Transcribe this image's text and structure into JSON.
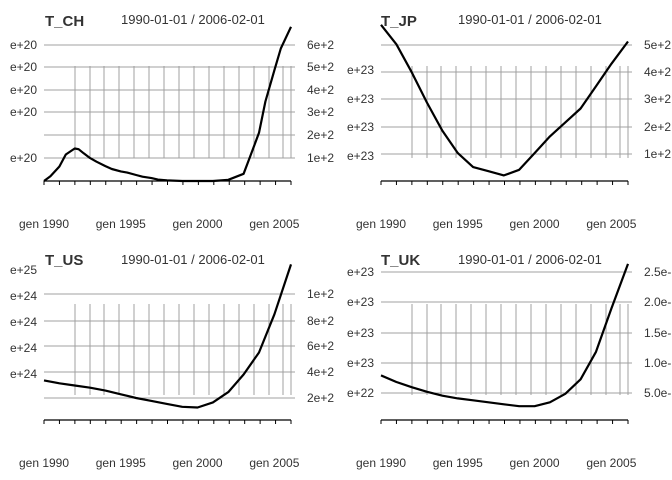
{
  "chart_data": [
    {
      "type": "line",
      "title": "T_CH",
      "date_range": "1990-01-01 / 2006-02-01",
      "x_tick_labels": [
        "gen 1990",
        "gen 1995",
        "gen 2000",
        "gen 2005"
      ],
      "y_tick_labels_left": [
        "e+20",
        "e+20",
        "e+20",
        "e+20",
        "e+20"
      ],
      "y_tick_labels_right": [
        "6e+2",
        "5e+2",
        "4e+2",
        "3e+2",
        "2e+2",
        "1e+2"
      ],
      "grid": true,
      "series": [
        {
          "x": [
            "1990-01",
            "1990-06",
            "1991-01",
            "1991-06",
            "1992-01",
            "1992-04",
            "1992-08",
            "1993-01",
            "1993-06",
            "1994-01",
            "1994-06",
            "1995-01",
            "1995-06",
            "1996-01",
            "1996-06",
            "1997-01",
            "1997-06",
            "1998-01",
            "1999-01",
            "2000-01",
            "2001-01",
            "2002-01",
            "2003-01",
            "2003-06",
            "2004-01",
            "2004-06",
            "2005-01",
            "2005-06",
            "2006-02"
          ],
          "y": [
            0.0,
            0.2,
            0.6,
            1.1,
            1.35,
            1.32,
            1.15,
            0.95,
            0.8,
            0.62,
            0.5,
            0.4,
            0.35,
            0.25,
            0.18,
            0.12,
            0.06,
            0.03,
            0.0,
            0.0,
            0.0,
            0.05,
            0.3,
            1.0,
            2.0,
            3.3,
            4.6,
            5.5,
            6.4
          ]
        }
      ]
    },
    {
      "type": "line",
      "title": "T_JP",
      "date_range": "1990-01-01 / 2006-02-01",
      "x_tick_labels": [
        "gen 1990",
        "gen 1995",
        "gen 2000",
        "gen 2005"
      ],
      "y_tick_labels_left": [
        "e+23",
        "e+23",
        "e+23",
        "e+23"
      ],
      "y_tick_labels_right": [
        "5e+2",
        "4e+2",
        "3e+2",
        "2e+2",
        "1e+2"
      ],
      "grid": true,
      "series": [
        {
          "x": [
            "1990-01",
            "1991-01",
            "1992-01",
            "1993-01",
            "1994-01",
            "1995-01",
            "1996-01",
            "1997-01",
            "1998-01",
            "1999-01",
            "2000-01",
            "2001-01",
            "2002-01",
            "2003-01",
            "2004-01",
            "2005-01",
            "2006-02"
          ],
          "y": [
            5.6,
            4.9,
            3.9,
            2.8,
            1.8,
            1.0,
            0.5,
            0.35,
            0.2,
            0.4,
            1.0,
            1.6,
            2.1,
            2.6,
            3.4,
            4.2,
            5.0
          ]
        }
      ]
    },
    {
      "type": "line",
      "title": "T_US",
      "date_range": "1990-01-01 / 2006-02-01",
      "x_tick_labels": [
        "gen 1990",
        "gen 1995",
        "gen 2000",
        "gen 2005"
      ],
      "y_tick_labels_left": [
        "e+25",
        "e+24",
        "e+24",
        "e+24",
        "e+24"
      ],
      "y_tick_labels_right": [
        "1e+2",
        "8e+2",
        "6e+2",
        "4e+2",
        "2e+2"
      ],
      "grid": true,
      "series": [
        {
          "x": [
            "1990-01",
            "1991-01",
            "1992-01",
            "1993-01",
            "1994-01",
            "1995-01",
            "1996-01",
            "1997-01",
            "1998-01",
            "1999-01",
            "2000-01",
            "2001-01",
            "2002-01",
            "2003-01",
            "2004-01",
            "2005-01",
            "2006-02"
          ],
          "y": [
            2.7,
            2.5,
            2.35,
            2.2,
            2.0,
            1.75,
            1.5,
            1.3,
            1.1,
            0.9,
            0.85,
            1.2,
            1.9,
            3.1,
            4.6,
            7.2,
            10.6
          ]
        }
      ]
    },
    {
      "type": "line",
      "title": "T_UK",
      "date_range": "1990-01-01 / 2006-02-01",
      "x_tick_labels": [
        "gen 1990",
        "gen 1995",
        "gen 2000",
        "gen 2005"
      ],
      "y_tick_labels_left": [
        "e+23",
        "e+23",
        "e+23",
        "e+23",
        "e+22"
      ],
      "y_tick_labels_right": [
        "2.5e-",
        "2.0e-",
        "1.5e-",
        "1.0e-",
        "5.0e-"
      ],
      "grid": true,
      "series": [
        {
          "x": [
            "1990-01",
            "1991-01",
            "1992-01",
            "1993-01",
            "1994-01",
            "1995-01",
            "1996-01",
            "1997-01",
            "1998-01",
            "1999-01",
            "2000-01",
            "2001-01",
            "2002-01",
            "2003-01",
            "2004-01",
            "2005-01",
            "2006-02"
          ],
          "y": [
            3.4,
            2.9,
            2.5,
            2.15,
            1.85,
            1.65,
            1.5,
            1.35,
            1.2,
            1.05,
            1.05,
            1.35,
            2.0,
            3.1,
            5.2,
            8.5,
            11.9
          ]
        }
      ]
    }
  ]
}
